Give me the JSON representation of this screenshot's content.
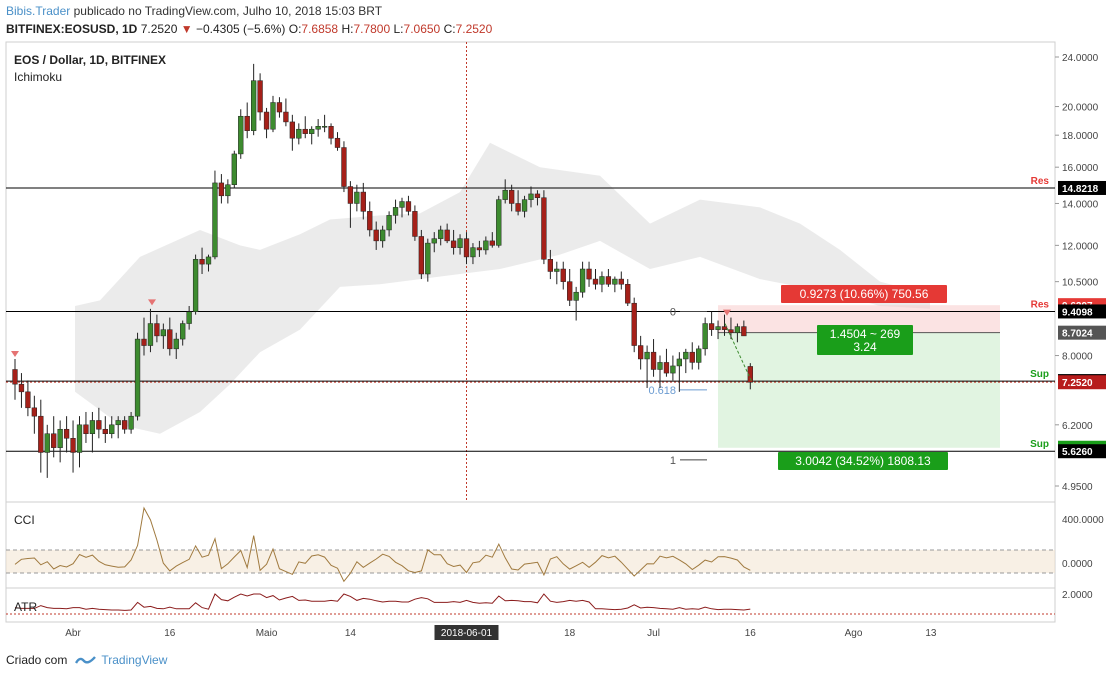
{
  "header": {
    "author": "Bibis.Trader",
    "published": "publicado no TradingView.com, Julho 10, 2018 15:03 BRT",
    "symbol": "BITFINEX:EOSUSD, 1D",
    "last": "7.2520",
    "arrow": "▼",
    "change": "−0.4305 (−5.6%)",
    "o_label": "O:",
    "o": "7.6858",
    "h_label": "H:",
    "h": "7.7800",
    "l_label": "L:",
    "l": "7.0650",
    "c_label": "C:",
    "c": "7.2520"
  },
  "legend": {
    "title": "EOS / Dollar, 1D, BITFINEX",
    "indicator": "Ichimoku",
    "cci": "CCI",
    "atr": "ATR"
  },
  "footer": {
    "created": "Criado com",
    "brand": "TradingView"
  },
  "chart_data": {
    "type": "candlestick",
    "price_axis": [
      "24.0000",
      "20.0000",
      "18.0000",
      "16.0000",
      "14.0000",
      "12.0000",
      "10.5000",
      "8.0000",
      "6.2000",
      "4.9500"
    ],
    "price_labels": [
      {
        "text": "14.8218",
        "price": 14.8218,
        "bg": "#000000",
        "fg": "#ffffff"
      },
      {
        "text": "9.6297",
        "price": 9.6297,
        "bg": "#e53935",
        "fg": "#ffffff"
      },
      {
        "text": "9.4098",
        "price": 9.4098,
        "bg": "#000000",
        "fg": "#ffffff"
      },
      {
        "text": "8.7024",
        "price": 8.7024,
        "bg": "#555555",
        "fg": "#ffffff"
      },
      {
        "text": "7.2824",
        "price": 7.2824,
        "bg": "#000000",
        "fg": "#ffffff"
      },
      {
        "text": "7.2520",
        "price": 7.252,
        "bg": "#b71c1c",
        "fg": "#ffffff"
      },
      {
        "text": "5.6982",
        "price": 5.6982,
        "bg": "#1a9e1a",
        "fg": "#ffffff"
      },
      {
        "text": "5.6260",
        "price": 5.626,
        "bg": "#000000",
        "fg": "#ffffff"
      }
    ],
    "levels": [
      {
        "price": 14.8218,
        "tag": "Res",
        "color": "#e53935"
      },
      {
        "price": 9.4098,
        "tag": "Res",
        "color": "#e53935"
      },
      {
        "price": 7.2824,
        "tag": "Sup",
        "color": "#1a9e1a"
      },
      {
        "price": 5.626,
        "tag": "Sup",
        "color": "#1a9e1a"
      }
    ],
    "fib": [
      {
        "label": "0",
        "price": 9.4098
      },
      {
        "label": "0.618",
        "price": 7.05
      },
      {
        "label": "1",
        "price": 5.45
      }
    ],
    "position": {
      "stop_text": "0.9273 (10.66%) 750.56",
      "ratio_text": "1.4504 ~ 269",
      "ratio2_text": "3.24",
      "target_text": "3.0042 (34.52%) 1808.13",
      "entry": 8.7024,
      "stop": 9.6297,
      "target": 5.6982
    },
    "time_axis": [
      {
        "label": "Abr",
        "idx": 9
      },
      {
        "label": "16",
        "idx": 24
      },
      {
        "label": "Maio",
        "idx": 39
      },
      {
        "label": "14",
        "idx": 52
      },
      {
        "label": "2018-06-01",
        "idx": 70,
        "highlight": true
      },
      {
        "label": "18",
        "idx": 86
      },
      {
        "label": "Jul",
        "idx": 99
      },
      {
        "label": "16",
        "idx": 114
      },
      {
        "label": "Ago",
        "idx": 130
      },
      {
        "label": "13",
        "idx": 142
      }
    ],
    "cci_axis": [
      "400.0000",
      "0.0000"
    ],
    "atr_axis": [
      "2.0000"
    ],
    "candles": [
      [
        7.6,
        7.9,
        6.8,
        7.2
      ],
      [
        7.2,
        7.5,
        6.6,
        7.0
      ],
      [
        7.0,
        7.3,
        6.4,
        6.6
      ],
      [
        6.6,
        6.9,
        6.0,
        6.4
      ],
      [
        6.4,
        6.8,
        5.2,
        5.6
      ],
      [
        5.6,
        6.2,
        5.1,
        6.0
      ],
      [
        6.0,
        6.4,
        5.5,
        5.7
      ],
      [
        5.7,
        6.3,
        5.4,
        6.1
      ],
      [
        6.1,
        6.4,
        5.6,
        5.9
      ],
      [
        5.9,
        6.3,
        5.2,
        5.6
      ],
      [
        5.6,
        6.4,
        5.3,
        6.2
      ],
      [
        6.2,
        6.5,
        5.8,
        6.0
      ],
      [
        6.0,
        6.5,
        5.6,
        6.3
      ],
      [
        6.3,
        6.6,
        5.9,
        6.1
      ],
      [
        6.1,
        6.4,
        5.8,
        6.0
      ],
      [
        6.0,
        6.4,
        5.9,
        6.2
      ],
      [
        6.2,
        6.4,
        5.9,
        6.3
      ],
      [
        6.3,
        6.4,
        6.0,
        6.1
      ],
      [
        6.1,
        6.5,
        6.0,
        6.4
      ],
      [
        6.4,
        8.7,
        6.3,
        8.5
      ],
      [
        8.5,
        9.2,
        8.0,
        8.3
      ],
      [
        8.3,
        9.5,
        8.1,
        9.0
      ],
      [
        9.0,
        9.3,
        8.4,
        8.6
      ],
      [
        8.6,
        9.0,
        8.2,
        8.8
      ],
      [
        8.8,
        9.2,
        8.0,
        8.2
      ],
      [
        8.2,
        8.7,
        7.9,
        8.5
      ],
      [
        8.5,
        9.1,
        8.3,
        9.0
      ],
      [
        9.0,
        9.6,
        8.8,
        9.4
      ],
      [
        9.4,
        11.6,
        9.3,
        11.4
      ],
      [
        11.4,
        11.9,
        10.8,
        11.2
      ],
      [
        11.2,
        11.6,
        10.9,
        11.5
      ],
      [
        11.5,
        15.8,
        11.4,
        15.1
      ],
      [
        15.1,
        15.6,
        14.0,
        14.4
      ],
      [
        14.4,
        15.3,
        14.0,
        15.0
      ],
      [
        15.0,
        17.0,
        14.8,
        16.8
      ],
      [
        16.8,
        19.8,
        16.5,
        19.3
      ],
      [
        19.3,
        20.3,
        17.8,
        18.3
      ],
      [
        18.3,
        23.4,
        18.0,
        22.0
      ],
      [
        22.0,
        22.6,
        19.0,
        19.6
      ],
      [
        19.6,
        19.9,
        17.8,
        18.4
      ],
      [
        18.4,
        20.8,
        18.2,
        20.3
      ],
      [
        20.3,
        20.7,
        19.2,
        19.6
      ],
      [
        19.6,
        20.6,
        18.6,
        18.9
      ],
      [
        18.9,
        19.4,
        17.0,
        17.8
      ],
      [
        17.8,
        18.8,
        17.4,
        18.4
      ],
      [
        18.4,
        19.3,
        17.8,
        18.1
      ],
      [
        18.1,
        18.6,
        17.4,
        18.4
      ],
      [
        18.4,
        19.1,
        17.9,
        18.6
      ],
      [
        18.6,
        19.4,
        18.2,
        18.6
      ],
      [
        18.6,
        18.8,
        17.4,
        17.8
      ],
      [
        17.8,
        18.2,
        17.0,
        17.2
      ],
      [
        17.2,
        17.6,
        14.6,
        14.9
      ],
      [
        14.9,
        15.2,
        12.8,
        14.0
      ],
      [
        14.0,
        15.0,
        13.6,
        14.6
      ],
      [
        14.6,
        15.1,
        13.2,
        13.6
      ],
      [
        13.6,
        14.1,
        12.4,
        12.7
      ],
      [
        12.7,
        13.1,
        11.8,
        12.2
      ],
      [
        12.2,
        12.9,
        11.9,
        12.7
      ],
      [
        12.7,
        13.6,
        12.4,
        13.4
      ],
      [
        13.4,
        14.2,
        13.0,
        13.8
      ],
      [
        13.8,
        14.3,
        13.3,
        14.1
      ],
      [
        14.1,
        14.4,
        13.4,
        13.6
      ],
      [
        13.6,
        13.9,
        12.2,
        12.4
      ],
      [
        12.4,
        12.7,
        10.6,
        10.8
      ],
      [
        10.8,
        12.3,
        10.5,
        12.1
      ],
      [
        12.1,
        12.6,
        11.7,
        12.3
      ],
      [
        12.3,
        12.9,
        12.0,
        12.7
      ],
      [
        12.7,
        13.0,
        12.1,
        12.2
      ],
      [
        12.2,
        12.7,
        11.6,
        11.9
      ],
      [
        11.9,
        12.5,
        11.6,
        12.3
      ],
      [
        12.3,
        12.6,
        11.2,
        11.5
      ],
      [
        11.5,
        12.1,
        11.2,
        11.9
      ],
      [
        11.9,
        12.2,
        11.5,
        11.8
      ],
      [
        11.8,
        12.4,
        11.6,
        12.2
      ],
      [
        12.2,
        12.6,
        11.9,
        12.0
      ],
      [
        12.0,
        14.4,
        11.9,
        14.2
      ],
      [
        14.2,
        15.3,
        14.0,
        14.7
      ],
      [
        14.7,
        15.0,
        13.6,
        14.0
      ],
      [
        14.0,
        14.7,
        13.4,
        13.6
      ],
      [
        13.6,
        14.4,
        13.3,
        14.2
      ],
      [
        14.2,
        14.9,
        13.8,
        14.5
      ],
      [
        14.5,
        14.7,
        13.9,
        14.3
      ],
      [
        14.3,
        14.7,
        11.2,
        11.4
      ],
      [
        11.4,
        11.8,
        10.6,
        10.9
      ],
      [
        10.9,
        11.3,
        10.4,
        11.0
      ],
      [
        11.0,
        11.3,
        10.2,
        10.5
      ],
      [
        10.5,
        11.0,
        9.6,
        9.8
      ],
      [
        9.8,
        10.3,
        9.1,
        10.1
      ],
      [
        10.1,
        11.3,
        9.9,
        11.0
      ],
      [
        11.0,
        11.3,
        10.3,
        10.6
      ],
      [
        10.6,
        11.0,
        10.2,
        10.4
      ],
      [
        10.4,
        10.9,
        10.1,
        10.7
      ],
      [
        10.7,
        11.0,
        10.3,
        10.4
      ],
      [
        10.4,
        10.7,
        10.1,
        10.6
      ],
      [
        10.6,
        10.9,
        10.2,
        10.4
      ],
      [
        10.4,
        10.6,
        9.6,
        9.7
      ],
      [
        9.7,
        9.9,
        8.1,
        8.3
      ],
      [
        8.3,
        8.6,
        7.6,
        7.9
      ],
      [
        7.9,
        8.3,
        7.1,
        8.1
      ],
      [
        8.1,
        8.5,
        7.4,
        7.6
      ],
      [
        7.6,
        8.0,
        7.1,
        7.8
      ],
      [
        7.8,
        8.2,
        7.4,
        7.5
      ],
      [
        7.5,
        8.0,
        7.3,
        7.7
      ],
      [
        7.7,
        8.1,
        7.0,
        7.9
      ],
      [
        7.9,
        8.2,
        7.5,
        8.1
      ],
      [
        8.1,
        8.4,
        7.6,
        7.8
      ],
      [
        7.8,
        8.3,
        7.6,
        8.2
      ],
      [
        8.2,
        9.2,
        8.0,
        9.0
      ],
      [
        9.0,
        9.4,
        8.6,
        8.8
      ],
      [
        8.8,
        9.1,
        8.5,
        8.9
      ],
      [
        8.9,
        9.3,
        8.6,
        8.8
      ],
      [
        8.8,
        9.2,
        8.5,
        8.7
      ],
      [
        8.7,
        9.0,
        8.4,
        8.9
      ],
      [
        8.9,
        9.1,
        8.6,
        8.6
      ],
      [
        7.6858,
        7.78,
        7.065,
        7.252
      ]
    ]
  }
}
